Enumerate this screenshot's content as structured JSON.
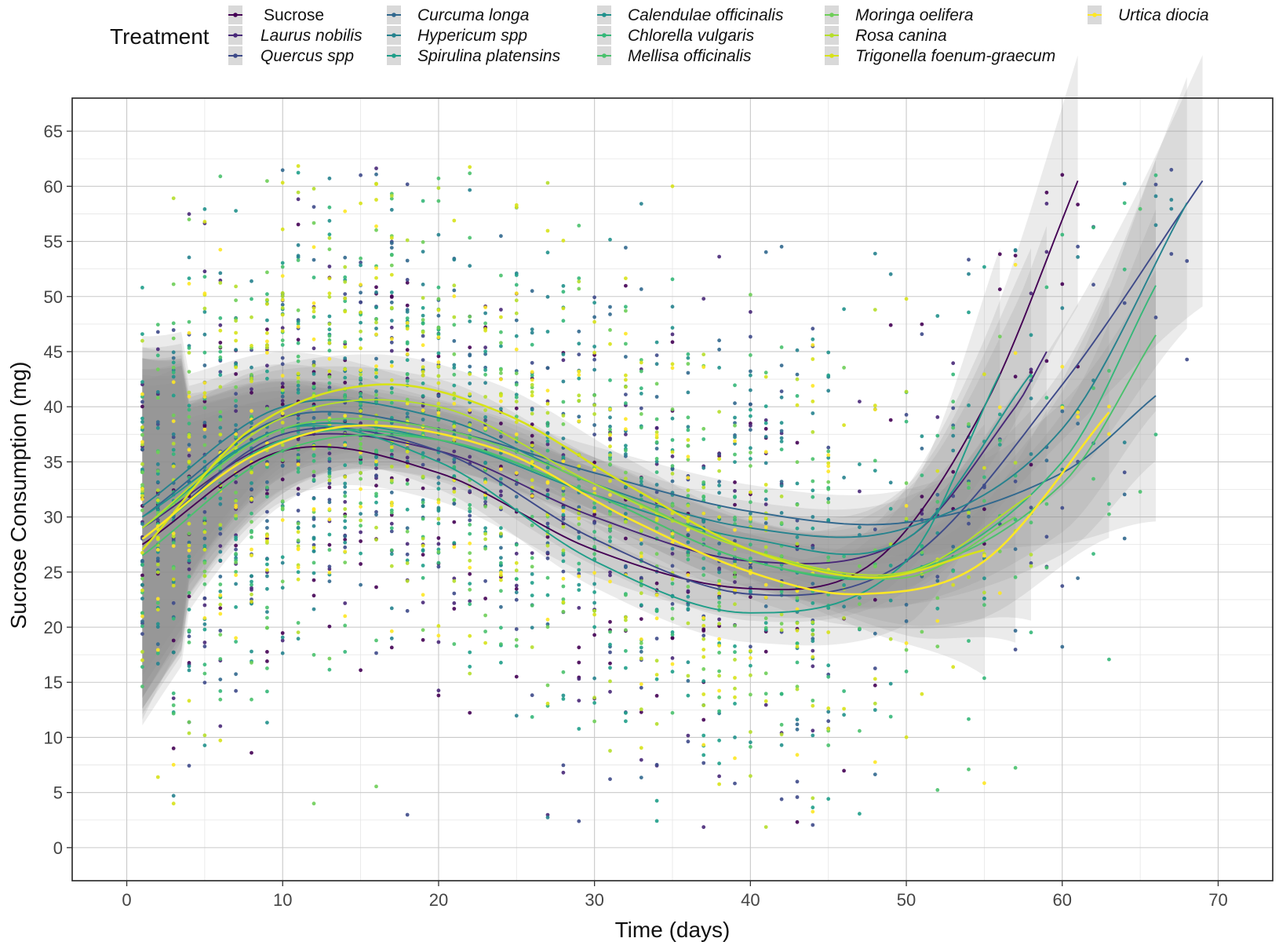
{
  "chart_data": {
    "type": "scatter",
    "title": "",
    "xlabel": "Time (days)",
    "ylabel": "Sucrose Consumption (mg)",
    "xlim": [
      -3.5,
      73.5
    ],
    "ylim": [
      -3,
      68
    ],
    "x_ticks": [
      0,
      10,
      20,
      30,
      40,
      50,
      60,
      70
    ],
    "y_ticks": [
      0,
      5,
      10,
      15,
      20,
      25,
      30,
      35,
      40,
      45,
      50,
      55,
      60,
      65
    ],
    "grid": true,
    "legend": {
      "title": "Treatment",
      "position": "top"
    },
    "series": [
      {
        "name": "Sucrose",
        "italic": false,
        "color": "#440154",
        "smooth": [
          [
            1,
            27.5
          ],
          [
            10,
            36
          ],
          [
            20,
            34
          ],
          [
            30,
            27
          ],
          [
            40,
            23.5
          ],
          [
            48,
            26
          ],
          [
            55,
            40
          ],
          [
            61,
            60.5
          ]
        ],
        "x_end": 61
      },
      {
        "name": "Laurus nobilis",
        "italic": true,
        "color": "#482878",
        "smooth": [
          [
            1,
            29
          ],
          [
            10,
            37
          ],
          [
            20,
            36
          ],
          [
            30,
            30
          ],
          [
            40,
            26
          ],
          [
            50,
            28
          ],
          [
            57,
            40
          ],
          [
            59,
            45
          ]
        ],
        "x_end": 59
      },
      {
        "name": "Quercus spp",
        "italic": true,
        "color": "#3e4a89",
        "smooth": [
          [
            1,
            28
          ],
          [
            10,
            37.5
          ],
          [
            20,
            36
          ],
          [
            30,
            28
          ],
          [
            40,
            23
          ],
          [
            50,
            26
          ],
          [
            60,
            42
          ],
          [
            69,
            60.5
          ]
        ],
        "x_end": 69
      },
      {
        "name": "Curcuma longa",
        "italic": true,
        "color": "#31688e",
        "smooth": [
          [
            1,
            30
          ],
          [
            10,
            39
          ],
          [
            20,
            38
          ],
          [
            30,
            34
          ],
          [
            40,
            30.5
          ],
          [
            50,
            29.5
          ],
          [
            60,
            34
          ],
          [
            66,
            41
          ]
        ],
        "x_end": 66
      },
      {
        "name": "Hypericum spp",
        "italic": true,
        "color": "#26828e",
        "smooth": [
          [
            1,
            31
          ],
          [
            10,
            40
          ],
          [
            20,
            39
          ],
          [
            30,
            33
          ],
          [
            40,
            29
          ],
          [
            50,
            29
          ],
          [
            60,
            38
          ],
          [
            68,
            58.5
          ]
        ],
        "x_end": 68
      },
      {
        "name": "Spirulina platensins",
        "italic": true,
        "color": "#1f9e89",
        "smooth": [
          [
            1,
            29
          ],
          [
            10,
            38
          ],
          [
            20,
            35
          ],
          [
            30,
            26
          ],
          [
            40,
            21.3
          ],
          [
            50,
            26
          ],
          [
            56,
            43
          ]
        ],
        "x_end": 56
      },
      {
        "name": "Calendulae officinalis",
        "italic": true,
        "color": "#21918c",
        "smooth": [
          [
            1,
            30
          ],
          [
            10,
            38
          ],
          [
            20,
            37
          ],
          [
            30,
            32
          ],
          [
            40,
            28
          ],
          [
            50,
            28
          ],
          [
            58,
            43
          ]
        ],
        "x_end": 58
      },
      {
        "name": "Chlorella vulgaris",
        "italic": true,
        "color": "#35b779",
        "smooth": [
          [
            1,
            28
          ],
          [
            10,
            37
          ],
          [
            20,
            37
          ],
          [
            30,
            32
          ],
          [
            40,
            26
          ],
          [
            50,
            25
          ],
          [
            60,
            35
          ],
          [
            66,
            51
          ]
        ],
        "x_end": 66
      },
      {
        "name": "Mellisa officinalis",
        "italic": true,
        "color": "#4ac16d",
        "smooth": [
          [
            1,
            26.5
          ],
          [
            10,
            36
          ],
          [
            20,
            37
          ],
          [
            30,
            32
          ],
          [
            40,
            26
          ],
          [
            50,
            25
          ],
          [
            60,
            33
          ],
          [
            66,
            46.5
          ]
        ],
        "x_end": 66
      },
      {
        "name": "Moringa oelifera",
        "italic": true,
        "color": "#6ece58",
        "smooth": [
          [
            1,
            29
          ],
          [
            10,
            38
          ],
          [
            20,
            38
          ],
          [
            30,
            33
          ],
          [
            40,
            27
          ],
          [
            50,
            24.5
          ],
          [
            57,
            30
          ]
        ],
        "x_end": 57
      },
      {
        "name": "Rosa canina",
        "italic": true,
        "color": "#b5de2b",
        "smooth": [
          [
            1,
            29
          ],
          [
            10,
            39
          ],
          [
            20,
            40
          ],
          [
            30,
            33
          ],
          [
            40,
            27
          ],
          [
            50,
            25
          ],
          [
            58,
            32
          ]
        ],
        "x_end": 58
      },
      {
        "name": "Trigonella foenum-graecum",
        "italic": true,
        "color": "#d7e219",
        "smooth": [
          [
            1,
            27
          ],
          [
            8,
            38
          ],
          [
            16,
            42
          ],
          [
            24,
            39.5
          ],
          [
            32,
            33
          ],
          [
            40,
            27
          ],
          [
            48,
            24.5
          ],
          [
            55,
            27
          ]
        ],
        "x_end": 55
      },
      {
        "name": "Urtica diocia",
        "italic": true,
        "color": "#fde725",
        "smooth": [
          [
            1,
            28
          ],
          [
            8,
            35.5
          ],
          [
            15,
            38.3
          ],
          [
            24,
            36
          ],
          [
            32,
            30
          ],
          [
            40,
            25
          ],
          [
            47,
            23
          ],
          [
            55,
            26
          ],
          [
            63,
            39.5
          ]
        ],
        "x_end": 63
      }
    ]
  }
}
